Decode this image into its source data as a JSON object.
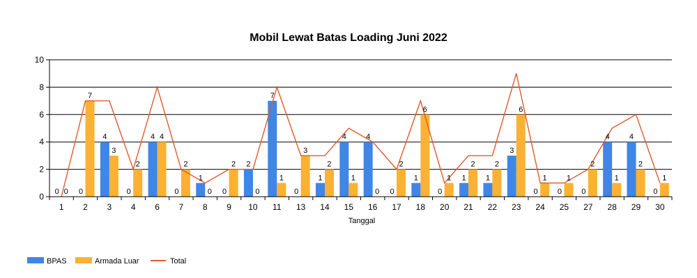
{
  "chart_data": {
    "type": "bar",
    "title": "Mobil Lewat Batas Loading Juni 2022",
    "xlabel": "Tanggal",
    "ylabel": "",
    "ylim": [
      0,
      10
    ],
    "yticks": [
      0,
      2,
      4,
      6,
      8,
      10
    ],
    "grid": true,
    "legend_position": "bottom-left",
    "categories": [
      "1",
      "2",
      "3",
      "4",
      "6",
      "7",
      "8",
      "9",
      "10",
      "11",
      "13",
      "14",
      "15",
      "16",
      "17",
      "18",
      "20",
      "21",
      "22",
      "23",
      "24",
      "25",
      "27",
      "28",
      "29",
      "30"
    ],
    "series": [
      {
        "name": "BPAS",
        "type": "bar",
        "color": "#3e86e8",
        "values": [
          0,
          0,
          4,
          0,
          4,
          0,
          1,
          0,
          2,
          7,
          0,
          1,
          4,
          4,
          0,
          1,
          0,
          1,
          1,
          3,
          0,
          0,
          0,
          4,
          4,
          0
        ]
      },
      {
        "name": "Armada Luar",
        "type": "bar",
        "color": "#fbb133",
        "values": [
          0,
          7,
          3,
          2,
          4,
          2,
          0,
          2,
          0,
          1,
          3,
          2,
          1,
          0,
          2,
          6,
          1,
          2,
          2,
          6,
          1,
          1,
          2,
          1,
          2,
          1
        ]
      },
      {
        "name": "Total",
        "type": "line",
        "color": "#e05a2b",
        "values": [
          0,
          7,
          7,
          2,
          8,
          2,
          1,
          2,
          2,
          8,
          3,
          3,
          5,
          4,
          2,
          7,
          1,
          3,
          3,
          9,
          1,
          1,
          2,
          5,
          6,
          1
        ]
      }
    ]
  }
}
